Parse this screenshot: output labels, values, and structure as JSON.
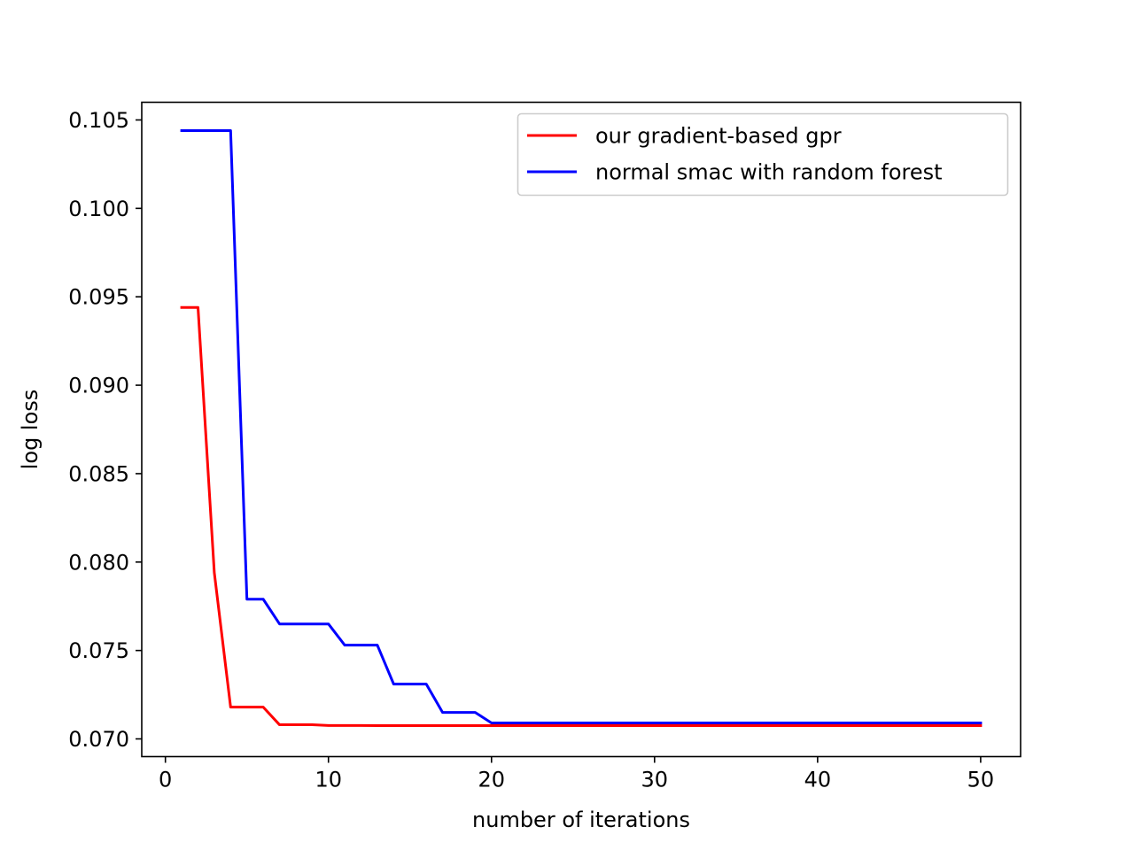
{
  "chart_data": {
    "type": "line",
    "title": "",
    "xlabel": "number of iterations",
    "ylabel": "log loss",
    "xlim": [
      -1.45,
      52.45
    ],
    "ylim": [
      0.069,
      0.106
    ],
    "xticks": [
      0,
      10,
      20,
      30,
      40,
      50
    ],
    "xtick_labels": [
      "0",
      "10",
      "20",
      "30",
      "40",
      "50"
    ],
    "yticks": [
      0.07,
      0.075,
      0.08,
      0.085,
      0.09,
      0.095,
      0.1,
      0.105
    ],
    "ytick_labels": [
      "0.070",
      "0.075",
      "0.080",
      "0.085",
      "0.090",
      "0.095",
      "0.100",
      "0.105"
    ],
    "grid": false,
    "legend_position": "upper right",
    "series": [
      {
        "name": "our gradient-based gpr",
        "color": "#ff0000",
        "x": [
          1,
          2,
          3,
          4,
          5,
          6,
          7,
          8,
          9,
          10,
          11,
          12,
          13,
          14,
          15,
          16,
          17,
          18,
          19,
          20,
          21,
          22,
          23,
          24,
          25,
          26,
          27,
          28,
          29,
          30,
          31,
          32,
          33,
          34,
          35,
          36,
          37,
          38,
          39,
          40,
          41,
          42,
          43,
          44,
          45,
          46,
          47,
          48,
          49,
          50
        ],
        "y": [
          0.0944,
          0.0944,
          0.0794,
          0.0718,
          0.0718,
          0.0718,
          0.0708,
          0.0708,
          0.0708,
          0.07076,
          0.07076,
          0.07076,
          0.07075,
          0.07075,
          0.07075,
          0.07075,
          0.07075,
          0.07075,
          0.07075,
          0.07075,
          0.07075,
          0.07075,
          0.07075,
          0.07075,
          0.07075,
          0.07075,
          0.07075,
          0.07075,
          0.07075,
          0.07075,
          0.07075,
          0.07075,
          0.07075,
          0.07075,
          0.07075,
          0.07075,
          0.07075,
          0.07075,
          0.07075,
          0.07075,
          0.07075,
          0.07075,
          0.07075,
          0.07075,
          0.07075,
          0.07075,
          0.07075,
          0.07075,
          0.07075,
          0.07075
        ]
      },
      {
        "name": "normal smac with random forest",
        "color": "#0000ff",
        "x": [
          1,
          2,
          3,
          4,
          5,
          6,
          7,
          8,
          9,
          10,
          11,
          12,
          13,
          14,
          15,
          16,
          17,
          18,
          19,
          20,
          21,
          22,
          23,
          24,
          25,
          26,
          27,
          28,
          29,
          30,
          31,
          32,
          33,
          34,
          35,
          36,
          37,
          38,
          39,
          40,
          41,
          42,
          43,
          44,
          45,
          46,
          47,
          48,
          49,
          50
        ],
        "y": [
          0.1044,
          0.1044,
          0.1044,
          0.1044,
          0.0779,
          0.0779,
          0.0765,
          0.0765,
          0.0765,
          0.0765,
          0.0753,
          0.0753,
          0.0753,
          0.0731,
          0.0731,
          0.0731,
          0.0715,
          0.0715,
          0.0715,
          0.0709,
          0.0709,
          0.0709,
          0.0709,
          0.0709,
          0.0709,
          0.0709,
          0.0709,
          0.0709,
          0.0709,
          0.0709,
          0.0709,
          0.0709,
          0.0709,
          0.0709,
          0.0709,
          0.0709,
          0.0709,
          0.0709,
          0.0709,
          0.0709,
          0.0709,
          0.0709,
          0.0709,
          0.0709,
          0.0709,
          0.0709,
          0.0709,
          0.0709,
          0.0709,
          0.0709
        ]
      }
    ]
  }
}
